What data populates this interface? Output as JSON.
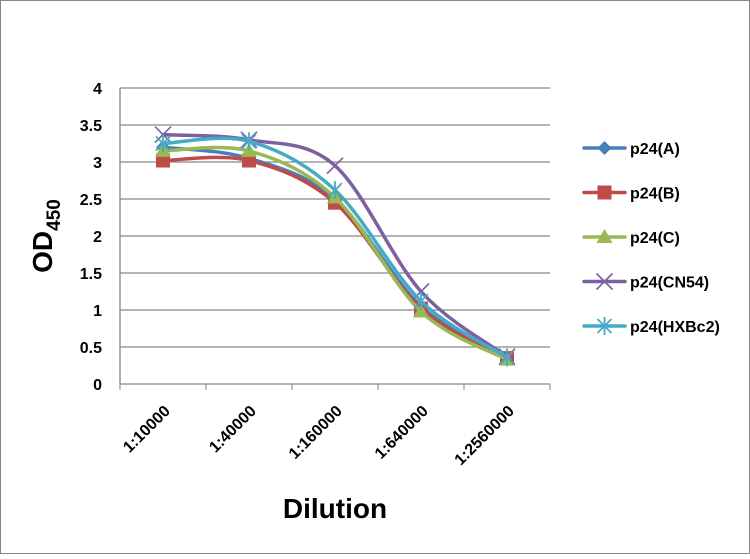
{
  "chart_data": {
    "type": "line",
    "title": "",
    "xlabel": "Dilution",
    "ylabel": "OD",
    "ylabel_subscript": "450",
    "categories": [
      "1:10000",
      "1:40000",
      "1:160000",
      "1:640000",
      "1:2560000"
    ],
    "ylim": [
      0,
      4
    ],
    "yticks": [
      "0",
      "0.5",
      "1",
      "1.5",
      "2",
      "2.5",
      "3",
      "3.5",
      "4"
    ],
    "grid": true,
    "legend": "right",
    "series": [
      {
        "name": "p24(A)",
        "color": "#4A7EBB",
        "marker": "diamond",
        "values": [
          3.2,
          3.05,
          2.5,
          1.05,
          0.35
        ]
      },
      {
        "name": "p24(B)",
        "color": "#BE4B48",
        "marker": "square",
        "values": [
          3.02,
          3.02,
          2.45,
          1.02,
          0.35
        ]
      },
      {
        "name": "p24(C)",
        "color": "#98B954",
        "marker": "triangle",
        "values": [
          3.15,
          3.15,
          2.52,
          0.98,
          0.33
        ]
      },
      {
        "name": "p24(CN54)",
        "color": "#7D60A0",
        "marker": "x",
        "values": [
          3.37,
          3.3,
          2.95,
          1.25,
          0.37
        ]
      },
      {
        "name": "p24(HXBc2)",
        "color": "#46AAC5",
        "marker": "star",
        "values": [
          3.25,
          3.28,
          2.62,
          1.12,
          0.36
        ]
      }
    ]
  }
}
